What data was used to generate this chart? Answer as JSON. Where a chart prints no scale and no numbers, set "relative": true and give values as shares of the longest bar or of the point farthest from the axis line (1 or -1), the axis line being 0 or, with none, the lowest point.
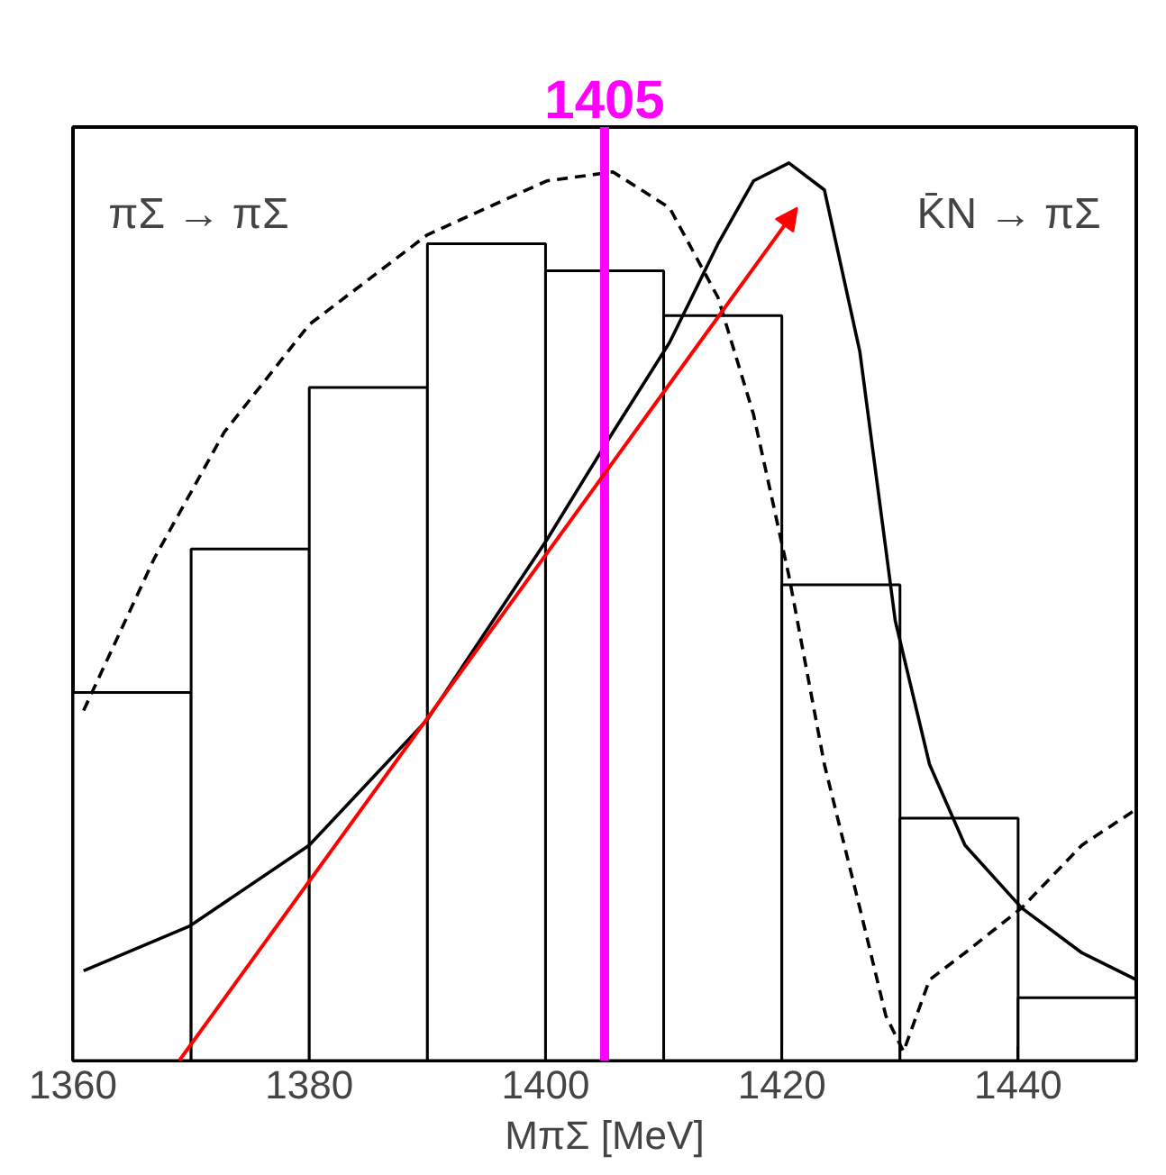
{
  "chart_data": {
    "type": "histogram",
    "relative": true,
    "xlabel": "MπΣ [MeV]",
    "xlim": [
      1360,
      1450
    ],
    "xticks": [
      1360,
      1380,
      1400,
      1420,
      1440
    ],
    "grid": false,
    "tick_labels": "x",
    "bins": [
      1360,
      1370,
      1380,
      1390,
      1400,
      1410,
      1420,
      1430,
      1440,
      1450
    ],
    "values": [
      0.41,
      0.57,
      0.75,
      0.91,
      0.88,
      0.83,
      0.53,
      0.27,
      0.07
    ],
    "color": "#ffffff",
    "series": [
      {
        "type": "line",
        "name": "πΣ → πΣ",
        "color": "#000000",
        "line_style": "dashed",
        "x": [
          1360.9,
          1366.9,
          1372.8,
          1380,
          1390,
          1400.1,
          1405.7,
          1410.5,
          1414.6,
          1417.6,
          1420.6,
          1423.6,
          1426.6,
          1428.8,
          1430.3,
          1432.5,
          1435.5,
          1440.3,
          1445.4,
          1450
        ],
        "values": [
          0.39,
          0.56,
          0.7,
          0.82,
          0.92,
          0.98,
          0.99,
          0.95,
          0.85,
          0.72,
          0.54,
          0.33,
          0.17,
          0.05,
          0.01,
          0.09,
          0.12,
          0.17,
          0.24,
          0.28
        ]
      },
      {
        "type": "line",
        "name": "K̄N → πΣ",
        "color": "#000000",
        "line_style": "solid",
        "x": [
          1360.9,
          1369.9,
          1380,
          1390,
          1400.1,
          1405.7,
          1410.5,
          1414.6,
          1417.6,
          1420.6,
          1423.6,
          1426.6,
          1429.6,
          1432.5,
          1435.5,
          1440.3,
          1445.4,
          1450
        ],
        "values": [
          0.1,
          0.15,
          0.24,
          0.38,
          0.58,
          0.7,
          0.8,
          0.91,
          0.98,
          1.0,
          0.97,
          0.79,
          0.49,
          0.33,
          0.24,
          0.17,
          0.12,
          0.09
        ]
      }
    ],
    "ref_lines": [
      {
        "axis": "x",
        "value": 1405,
        "label": "1405",
        "color": "#ff00ff"
      }
    ]
  }
}
